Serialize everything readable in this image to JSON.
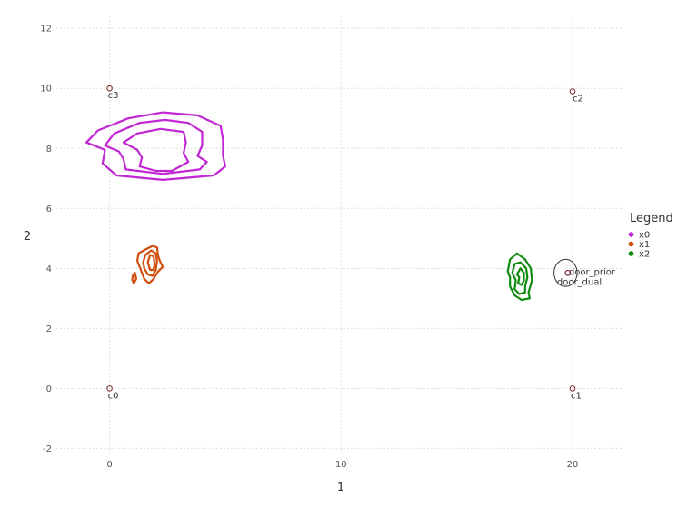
{
  "chart_data": {
    "type": "line",
    "xlabel": "1",
    "ylabel": "2",
    "xlim": [
      -2.3,
      22.2
    ],
    "ylim": [
      -2.2,
      12.4
    ],
    "x_ticks": [
      0,
      10,
      20
    ],
    "y_ticks": [
      -2,
      0,
      2,
      4,
      6,
      8,
      10,
      12
    ],
    "grid": true,
    "legend": {
      "title": "Legend",
      "placement": "right",
      "entries": [
        {
          "name": "x0",
          "color": "#c026d3"
        },
        {
          "name": "x1",
          "color": "#d14d0b"
        },
        {
          "name": "x2",
          "color": "#0e8a0e"
        }
      ]
    },
    "series": [
      {
        "name": "x0",
        "color": "#c026d3",
        "contours": [
          [
            [
              -1.0,
              8.2
            ],
            [
              -0.5,
              8.6
            ],
            [
              0.8,
              9.0
            ],
            [
              2.3,
              9.2
            ],
            [
              3.8,
              9.1
            ],
            [
              4.8,
              8.75
            ],
            [
              4.9,
              8.3
            ],
            [
              4.9,
              7.75
            ],
            [
              5.0,
              7.4
            ],
            [
              4.5,
              7.1
            ],
            [
              2.3,
              6.95
            ],
            [
              0.3,
              7.1
            ],
            [
              -0.3,
              7.5
            ],
            [
              -0.2,
              7.95
            ],
            [
              -1.0,
              8.2
            ]
          ],
          [
            [
              -0.2,
              8.1
            ],
            [
              0.2,
              8.5
            ],
            [
              1.3,
              8.85
            ],
            [
              2.4,
              8.95
            ],
            [
              3.4,
              8.85
            ],
            [
              4.0,
              8.55
            ],
            [
              4.0,
              8.1
            ],
            [
              3.8,
              7.75
            ],
            [
              4.2,
              7.55
            ],
            [
              3.9,
              7.3
            ],
            [
              2.3,
              7.15
            ],
            [
              0.7,
              7.3
            ],
            [
              0.6,
              7.65
            ],
            [
              0.4,
              7.9
            ],
            [
              -0.2,
              8.1
            ]
          ],
          [
            [
              0.6,
              8.2
            ],
            [
              1.2,
              8.5
            ],
            [
              2.2,
              8.65
            ],
            [
              3.2,
              8.55
            ],
            [
              3.3,
              8.2
            ],
            [
              3.2,
              7.85
            ],
            [
              3.4,
              7.55
            ],
            [
              2.7,
              7.25
            ],
            [
              2.0,
              7.25
            ],
            [
              1.3,
              7.4
            ],
            [
              1.4,
              7.7
            ],
            [
              1.2,
              7.95
            ],
            [
              0.6,
              8.2
            ]
          ]
        ]
      },
      {
        "name": "x1",
        "color": "#d14d0b",
        "contours": [
          [
            [
              1.2,
              4.25
            ],
            [
              1.25,
              4.5
            ],
            [
              1.6,
              4.65
            ],
            [
              1.85,
              4.75
            ],
            [
              2.05,
              4.7
            ],
            [
              2.1,
              4.4
            ],
            [
              2.2,
              4.2
            ],
            [
              2.3,
              4.05
            ],
            [
              2.1,
              3.9
            ],
            [
              1.9,
              3.65
            ],
            [
              1.7,
              3.5
            ],
            [
              1.5,
              3.65
            ],
            [
              1.35,
              3.95
            ],
            [
              1.2,
              4.25
            ]
          ],
          [
            [
              1.45,
              4.2
            ],
            [
              1.55,
              4.45
            ],
            [
              1.8,
              4.6
            ],
            [
              2.0,
              4.5
            ],
            [
              2.05,
              4.25
            ],
            [
              2.0,
              3.95
            ],
            [
              1.85,
              3.75
            ],
            [
              1.65,
              3.8
            ],
            [
              1.5,
              4.0
            ],
            [
              1.45,
              4.2
            ]
          ],
          [
            [
              1.65,
              4.2
            ],
            [
              1.75,
              4.45
            ],
            [
              1.9,
              4.4
            ],
            [
              1.95,
              4.15
            ],
            [
              1.9,
              3.95
            ],
            [
              1.75,
              3.95
            ],
            [
              1.65,
              4.2
            ]
          ],
          [
            [
              1.0,
              3.75
            ],
            [
              1.1,
              3.85
            ],
            [
              1.15,
              3.65
            ],
            [
              1.05,
              3.5
            ],
            [
              0.98,
              3.62
            ],
            [
              1.0,
              3.75
            ]
          ]
        ]
      },
      {
        "name": "x2",
        "color": "#0e8a0e",
        "contours": [
          [
            [
              17.2,
              3.9
            ],
            [
              17.3,
              4.3
            ],
            [
              17.6,
              4.5
            ],
            [
              17.95,
              4.3
            ],
            [
              18.2,
              4.0
            ],
            [
              18.25,
              3.6
            ],
            [
              18.1,
              3.2
            ],
            [
              18.15,
              3.0
            ],
            [
              17.8,
              2.95
            ],
            [
              17.5,
              3.1
            ],
            [
              17.3,
              3.4
            ],
            [
              17.3,
              3.7
            ],
            [
              17.2,
              3.9
            ]
          ],
          [
            [
              17.4,
              3.85
            ],
            [
              17.5,
              4.15
            ],
            [
              17.75,
              4.2
            ],
            [
              18.0,
              4.0
            ],
            [
              18.05,
              3.7
            ],
            [
              17.95,
              3.4
            ],
            [
              17.95,
              3.2
            ],
            [
              17.7,
              3.15
            ],
            [
              17.5,
              3.3
            ],
            [
              17.55,
              3.6
            ],
            [
              17.4,
              3.85
            ]
          ],
          [
            [
              17.6,
              3.8
            ],
            [
              17.75,
              4.0
            ],
            [
              17.9,
              3.85
            ],
            [
              17.9,
              3.6
            ],
            [
              17.8,
              3.45
            ],
            [
              17.65,
              3.5
            ],
            [
              17.7,
              3.7
            ],
            [
              17.6,
              3.8
            ]
          ]
        ]
      }
    ],
    "annotations": [
      {
        "text": "c0",
        "x": 0.0,
        "y": 0.0
      },
      {
        "text": "c1",
        "x": 20.0,
        "y": 0.0
      },
      {
        "text": "c2",
        "x": 20.0,
        "y": 9.9
      },
      {
        "text": "c3",
        "x": 0.0,
        "y": 10.0
      },
      {
        "text": "door_prior",
        "x": 19.8,
        "y": 3.85
      },
      {
        "text": "door_dual",
        "x": 19.8,
        "y": 3.85
      }
    ],
    "marker_color": "#7a2a2a",
    "ellipse": {
      "cx": 19.7,
      "cy": 3.85,
      "rx": 0.5,
      "ry": 0.45,
      "color": "#333333"
    }
  }
}
